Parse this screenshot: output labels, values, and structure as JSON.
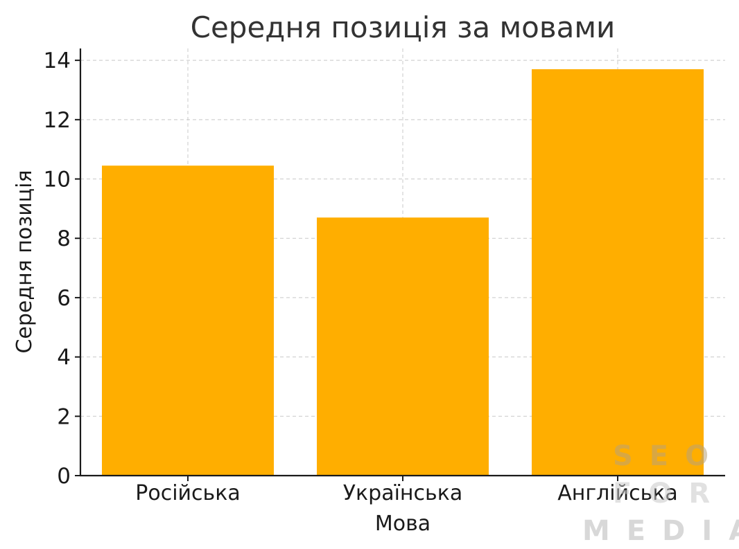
{
  "chart_data": {
    "type": "bar",
    "title": "Середня позиція за мовами",
    "xlabel": "Мова",
    "ylabel": "Середня позиція",
    "categories": [
      "Російська",
      "Українська",
      "Англійська"
    ],
    "values": [
      10.45,
      8.7,
      13.7
    ],
    "ylim": [
      0,
      14.4
    ],
    "yticks": [
      "0",
      "2",
      "4",
      "6",
      "8",
      "10",
      "12",
      "14"
    ],
    "grid": true,
    "bar_color": "#FFAE00"
  },
  "watermark": {
    "line1": "SEO",
    "line2": "FOR",
    "line3": "MEDIA"
  }
}
